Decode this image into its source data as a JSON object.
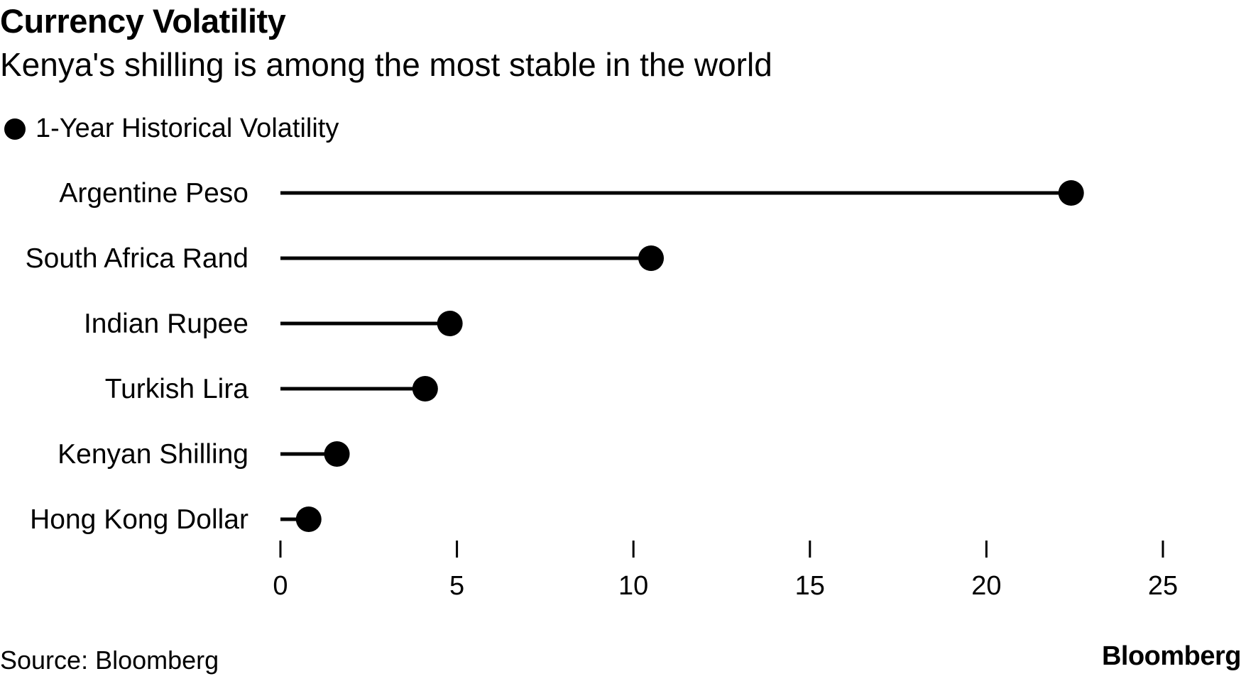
{
  "header": {
    "title": "Currency Volatility",
    "subtitle": "Kenya's shilling is among the most stable in the world"
  },
  "legend": {
    "label": "1-Year Historical Volatility"
  },
  "footer": {
    "source": "Source: Bloomberg",
    "brand": "Bloomberg"
  },
  "colors": {
    "mark": "#000000",
    "text": "#000000",
    "background": "#ffffff"
  },
  "chart_data": {
    "type": "lollipop",
    "title": "Currency Volatility",
    "subtitle": "Kenya's shilling is among the most stable in the world",
    "categories": [
      "Argentine Peso",
      "South Africa Rand",
      "Indian Rupee",
      "Turkish Lira",
      "Kenyan Shilling",
      "Hong Kong Dollar"
    ],
    "series": [
      {
        "name": "1-Year Historical Volatility",
        "values": [
          22.4,
          10.5,
          4.8,
          4.1,
          1.6,
          0.8
        ]
      }
    ],
    "xlim": [
      0,
      25
    ],
    "xticks": [
      0,
      5,
      10,
      15,
      20,
      25
    ],
    "xlabel": "",
    "ylabel": "",
    "grid": false,
    "legend_position": "top-left"
  }
}
